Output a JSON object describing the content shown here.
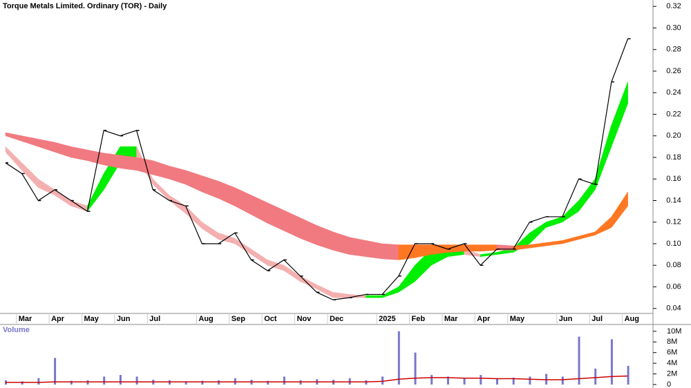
{
  "chart_data": {
    "type": "stock",
    "title": "Torque Metals Limited. Ordinary (TOR) - Daily",
    "categories": [
      null,
      "Mar",
      null,
      "Apr",
      null,
      "May",
      null,
      "Jun",
      null,
      "Jul",
      null,
      null,
      "Aug",
      null,
      "Sep",
      null,
      "Oct",
      null,
      "Nov",
      null,
      "Dec",
      null,
      null,
      "2025",
      null,
      "Feb",
      null,
      "Mar",
      null,
      "Apr",
      null,
      "May",
      null,
      null,
      "Jun",
      null,
      "Jul",
      null,
      "Aug"
    ],
    "ylim": [
      0.036,
      0.324
    ],
    "yticks": [
      0.04,
      0.06,
      0.08,
      {
        "value": 0.1,
        "label": "0.10"
      },
      0.12,
      0.14,
      0.16,
      0.18,
      {
        "value": 0.2,
        "label": "0.20"
      },
      0.22,
      0.24,
      0.26,
      0.28,
      {
        "value": 0.3,
        "label": "0.30"
      },
      0.32
    ],
    "price": {
      "name": "Close",
      "color": "#000000",
      "values": [
        0.175,
        0.165,
        0.14,
        0.15,
        0.14,
        0.13,
        0.205,
        0.2,
        0.205,
        0.15,
        0.14,
        0.135,
        0.1,
        0.1,
        0.11,
        0.085,
        0.075,
        0.085,
        0.07,
        0.055,
        0.048,
        0.05,
        0.053,
        0.053,
        0.07,
        0.1,
        0.1,
        0.095,
        0.1,
        0.08,
        0.095,
        0.095,
        0.12,
        0.125,
        0.125,
        0.16,
        0.155,
        0.25,
        0.29
      ]
    },
    "ribbons": [
      {
        "name": "Short-term",
        "up_color": "#00ee00",
        "down_color": "#f4b0b0",
        "upper": [
          0.19,
          0.175,
          0.16,
          0.15,
          0.14,
          0.135,
          0.165,
          0.19,
          0.19,
          0.16,
          0.145,
          0.135,
          0.12,
          0.11,
          0.105,
          0.095,
          0.085,
          0.08,
          0.07,
          0.062,
          0.055,
          0.053,
          0.052,
          0.052,
          0.06,
          0.08,
          0.095,
          0.095,
          0.095,
          0.09,
          0.092,
          0.096,
          0.11,
          0.12,
          0.125,
          0.14,
          0.16,
          0.21,
          0.25
        ],
        "lower": [
          0.185,
          0.168,
          0.152,
          0.145,
          0.135,
          0.13,
          0.15,
          0.175,
          0.18,
          0.155,
          0.14,
          0.128,
          0.114,
          0.104,
          0.1,
          0.09,
          0.08,
          0.075,
          0.065,
          0.058,
          0.05,
          0.05,
          0.05,
          0.05,
          0.055,
          0.065,
          0.08,
          0.088,
          0.09,
          0.088,
          0.09,
          0.092,
          0.1,
          0.115,
          0.12,
          0.13,
          0.15,
          0.19,
          0.23
        ]
      },
      {
        "name": "Long-term",
        "up_color": "#ff7722",
        "down_color": "#f07a80",
        "upper": [
          0.203,
          0.2,
          0.197,
          0.194,
          0.19,
          0.187,
          0.184,
          0.182,
          0.18,
          0.177,
          0.172,
          0.168,
          0.163,
          0.158,
          0.152,
          0.145,
          0.138,
          0.131,
          0.124,
          0.117,
          0.111,
          0.106,
          0.103,
          0.1,
          0.099,
          0.099,
          0.099,
          0.099,
          0.099,
          0.099,
          0.099,
          0.098,
          0.099,
          0.101,
          0.103,
          0.107,
          0.111,
          0.125,
          0.148
        ],
        "lower": [
          0.2,
          0.195,
          0.19,
          0.185,
          0.18,
          0.177,
          0.173,
          0.17,
          0.168,
          0.164,
          0.16,
          0.155,
          0.148,
          0.142,
          0.135,
          0.127,
          0.119,
          0.112,
          0.105,
          0.099,
          0.094,
          0.09,
          0.088,
          0.086,
          0.085,
          0.087,
          0.09,
          0.092,
          0.093,
          0.093,
          0.094,
          0.094,
          0.096,
          0.098,
          0.1,
          0.104,
          0.108,
          0.115,
          0.135
        ]
      }
    ],
    "volume": {
      "label": "Volume",
      "color": "#7777cc",
      "ma_color": "#cc0000",
      "ylim": [
        0,
        10500000
      ],
      "yticks": [
        0,
        {
          "value": 2000000,
          "label": "2M"
        },
        {
          "value": 4000000,
          "label": "4M"
        },
        {
          "value": 6000000,
          "label": "6M"
        },
        {
          "value": 8000000,
          "label": "8M"
        },
        {
          "value": 10000000,
          "label": "10M"
        }
      ],
      "values": [
        800000,
        600000,
        1200000,
        5000000,
        700000,
        800000,
        1500000,
        1800000,
        1500000,
        900000,
        800000,
        600000,
        700000,
        800000,
        1200000,
        900000,
        700000,
        1500000,
        800000,
        1000000,
        900000,
        1200000,
        800000,
        1500000,
        10000000,
        6000000,
        1800000,
        1500000,
        1200000,
        1800000,
        1200000,
        1300000,
        1500000,
        2000000,
        1500000,
        9000000,
        3000000,
        8500000,
        3500000
      ],
      "ma": [
        400000,
        400000,
        400000,
        500000,
        500000,
        500000,
        500000,
        500000,
        500000,
        500000,
        500000,
        500000,
        500000,
        500000,
        500000,
        500000,
        500000,
        500000,
        500000,
        500000,
        500000,
        500000,
        500000,
        600000,
        1000000,
        1200000,
        1300000,
        1300000,
        1200000,
        1200000,
        1100000,
        1100000,
        1000000,
        900000,
        900000,
        1100000,
        1300000,
        1500000,
        1600000
      ]
    }
  }
}
